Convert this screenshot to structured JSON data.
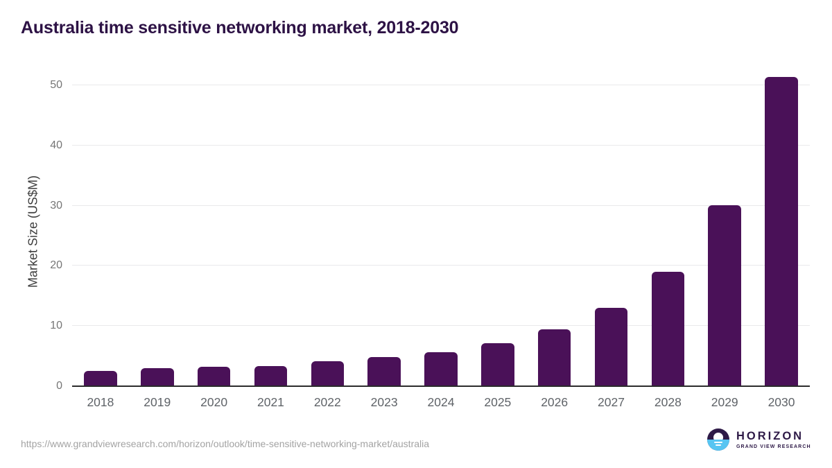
{
  "page": {
    "title": "Australia time sensitive networking market, 2018-2030",
    "source_url": "https://www.grandviewresearch.com/horizon/outlook/time-sensitive-networking-market/australia"
  },
  "logo": {
    "name": "HORIZON",
    "subtitle": "GRAND VIEW RESEARCH",
    "icon": "sun-over-water-icon"
  },
  "colors": {
    "bar": "#4A1158",
    "title_text": "#2D1245",
    "gridline": "#E9E9EB",
    "axis_line": "#2B2B2B",
    "ytick_text": "#757575",
    "xtick_text": "#5F6368",
    "axis_title_text": "#3D3D3D",
    "url_text": "#A3A3A3",
    "logo_purple": "#2E1A47",
    "logo_blue": "#58C5F2"
  },
  "chart_data": {
    "type": "bar",
    "title": "Australia time sensitive networking market, 2018-2030",
    "categories": [
      "2018",
      "2019",
      "2020",
      "2021",
      "2022",
      "2023",
      "2024",
      "2025",
      "2026",
      "2027",
      "2028",
      "2029",
      "2030"
    ],
    "values": [
      2.5,
      3.0,
      3.2,
      3.4,
      4.1,
      4.8,
      5.7,
      7.2,
      9.5,
      13.0,
      19.0,
      30.1,
      51.4
    ],
    "xlabel": "",
    "ylabel": "Market Size (US$M)",
    "ylim": [
      0,
      50
    ],
    "yticks": [
      0,
      10,
      20,
      30,
      40,
      50
    ],
    "grid": true,
    "legend": false,
    "bar_corner_radius_px": 6
  }
}
